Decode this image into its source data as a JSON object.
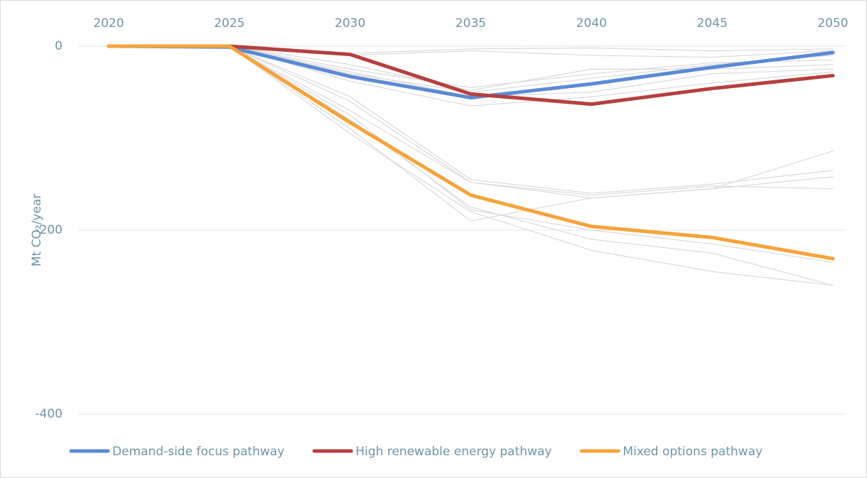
{
  "chart_data": {
    "type": "line",
    "y_label": "Mt CO₂/year",
    "x": [
      2020,
      2025,
      2030,
      2035,
      2040,
      2045,
      2050
    ],
    "xlim": [
      2020,
      2050
    ],
    "xticks": [
      2020,
      2025,
      2030,
      2035,
      2040,
      2045,
      2050
    ],
    "ylim": [
      -400,
      0
    ],
    "yticks": [
      -400,
      -200,
      0
    ],
    "grid": true,
    "legend": "bottom",
    "background_series": [
      {
        "color": "#d9d9d9",
        "values": [
          0,
          0,
          -30,
          -50,
          -35,
          -20,
          -10
        ]
      },
      {
        "color": "#d9d9d9",
        "values": [
          0,
          0,
          -25,
          -45,
          -30,
          -18,
          -15
        ]
      },
      {
        "color": "#d9d9d9",
        "values": [
          0,
          0,
          -20,
          -48,
          -25,
          -25,
          -20
        ]
      },
      {
        "color": "#d9d9d9",
        "values": [
          0,
          0,
          -10,
          -5,
          -10,
          -12,
          -5
        ]
      },
      {
        "color": "#d9d9d9",
        "values": [
          0,
          0,
          -8,
          -3,
          -2,
          -5,
          -3
        ]
      },
      {
        "color": "#d9d9d9",
        "values": [
          0,
          0,
          -38,
          -65,
          -55,
          -40,
          -28
        ]
      },
      {
        "color": "#d9d9d9",
        "values": [
          0,
          0,
          -28,
          -55,
          -50,
          -30,
          -25
        ]
      },
      {
        "color": "#d9d9d9",
        "values": [
          0,
          0,
          -55,
          -145,
          -160,
          -150,
          -135
        ]
      },
      {
        "color": "#d9d9d9",
        "values": [
          0,
          0,
          -70,
          -148,
          -165,
          -155,
          -142
        ]
      },
      {
        "color": "#d9d9d9",
        "values": [
          0,
          0,
          -90,
          -190,
          -165,
          -155,
          -114
        ]
      },
      {
        "color": "#d9d9d9",
        "values": [
          0,
          0,
          -80,
          -175,
          -210,
          -225,
          -260
        ]
      },
      {
        "color": "#d9d9d9",
        "values": [
          0,
          0,
          -95,
          -180,
          -222,
          -245,
          -260
        ]
      },
      {
        "color": "#d9d9d9",
        "values": [
          0,
          0,
          -75,
          -178,
          -200,
          -215,
          -235
        ]
      },
      {
        "color": "#d9d9d9",
        "values": [
          0,
          0,
          -60,
          -148,
          -162,
          -152,
          -155
        ]
      }
    ],
    "series": [
      {
        "name": "Demand-side focus pathway",
        "color": "#5b8ad4",
        "values": [
          0,
          -1,
          -33,
          -56,
          -41,
          -23,
          -7
        ]
      },
      {
        "name": "High renewable energy pathway",
        "color": "#b5403f",
        "values": [
          0,
          0,
          -9,
          -52,
          -63,
          -46,
          -32
        ]
      },
      {
        "name": "Mixed options pathway",
        "color": "#f5a33a",
        "values": [
          0,
          0,
          -83,
          -162,
          -196,
          -208,
          -231
        ]
      }
    ]
  }
}
